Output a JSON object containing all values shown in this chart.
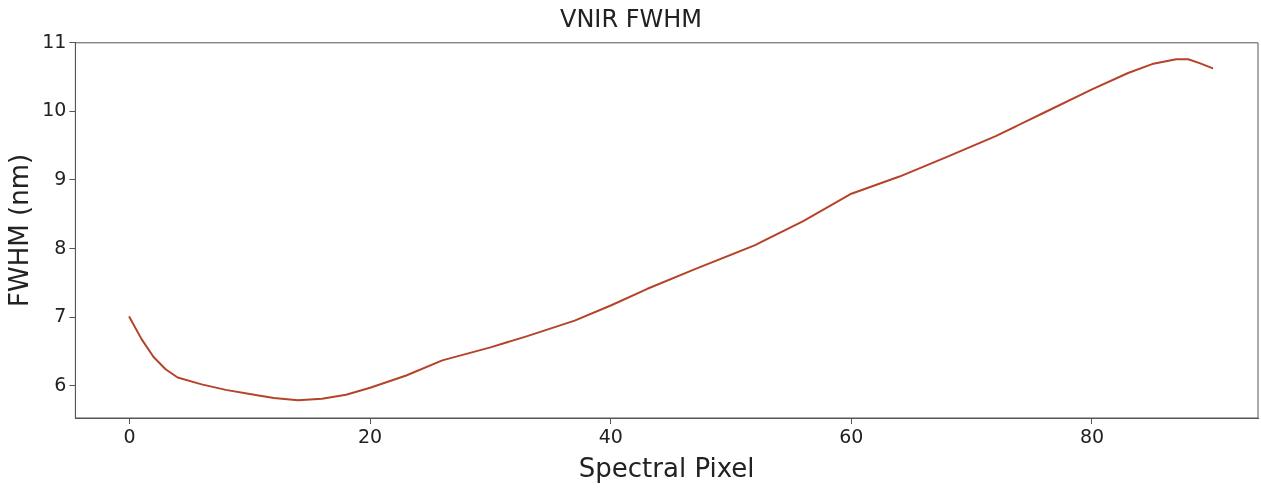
{
  "chart_data": {
    "type": "line",
    "title": "VNIR FWHM",
    "xlabel": "Spectral Pixel",
    "ylabel": "FWHM (nm)",
    "x": [
      0,
      1,
      2,
      3,
      4,
      6,
      8,
      10,
      12,
      14,
      16,
      18,
      20,
      23,
      26,
      30,
      33,
      37,
      40,
      43,
      47,
      52,
      56,
      60,
      64,
      68,
      72,
      76,
      80,
      83,
      85,
      87,
      88,
      89,
      90
    ],
    "series": [
      {
        "color": "#b5432a",
        "values": [
          7.0,
          6.68,
          6.42,
          6.24,
          6.12,
          6.02,
          5.94,
          5.88,
          5.82,
          5.79,
          5.81,
          5.87,
          5.97,
          6.15,
          6.37,
          6.56,
          6.72,
          6.95,
          7.17,
          7.41,
          7.7,
          8.05,
          8.4,
          8.8,
          9.05,
          9.34,
          9.64,
          9.98,
          10.32,
          10.56,
          10.69,
          10.76,
          10.76,
          10.7,
          10.63
        ]
      }
    ],
    "xlim": [
      -4.5,
      93.8
    ],
    "xticks": [
      0,
      20,
      40,
      60,
      80
    ],
    "ylim": [
      5.53,
      11
    ],
    "yticks": [
      6,
      7,
      8,
      9,
      10,
      11
    ],
    "grid": false,
    "legend": false,
    "marker": "none",
    "line_style": "solid"
  }
}
